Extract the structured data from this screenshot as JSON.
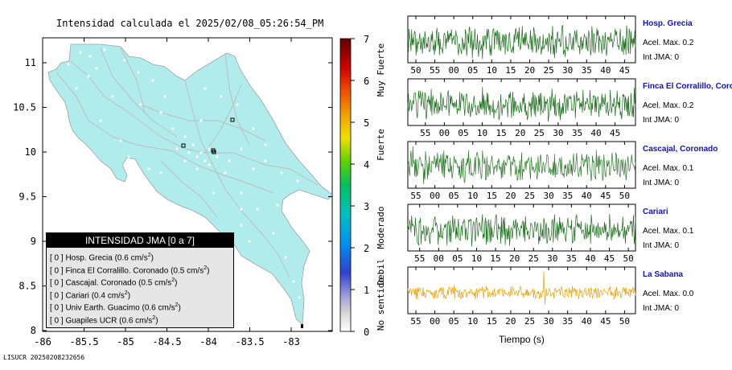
{
  "map": {
    "title": "Intensidad calculada el 2025/02/08_05:26:54_PM",
    "yticks": [
      "11",
      "10.5",
      "10",
      "9.5",
      "9",
      "8.5",
      "8"
    ],
    "xticks": [
      "-86",
      "-85.5",
      "-85",
      "-84.5",
      "-84",
      "-83.5",
      "-83"
    ],
    "land_color": "#b0ecec",
    "road_color": "#c0c0c0"
  },
  "colorbar": {
    "ticks": [
      "7",
      "6",
      "5",
      "4",
      "3",
      "2",
      "1",
      "0"
    ],
    "categories": [
      "Muy Fuerte",
      "Fuerte",
      "Moderado",
      "Debil",
      "No sentido"
    ]
  },
  "legend": {
    "header": "INTENSIDAD JMA [0 a 7]",
    "items": [
      {
        "level": "[ 0 ]",
        "name": "Hosp. Grecia",
        "value": "(0.6 cm/s",
        "sup": "2",
        "close": ")"
      },
      {
        "level": "[ 0 ]",
        "name": "Finca El Corralillo. Coronado",
        "value": "(0.5 cm/s",
        "sup": "2",
        "close": ")"
      },
      {
        "level": "[ 0 ]",
        "name": "Cascajal. Coronado",
        "value": "(0.5 cm/s",
        "sup": "2",
        "close": ")"
      },
      {
        "level": "[ 0 ]",
        "name": "Cariari",
        "value": "(0.4 cm/s",
        "sup": "2",
        "close": ")"
      },
      {
        "level": "[ 0 ]",
        "name": "Univ Earth. Guacimo",
        "value": "(0.6 cm/s",
        "sup": "2",
        "close": ")"
      },
      {
        "level": "[ 0 ]",
        "name": "Guapiles UCR",
        "value": "(0.6 cm/s",
        "sup": "2",
        "close": ")"
      }
    ]
  },
  "footer": "LISUCR 20250208232656",
  "stations": [
    {
      "name": "Hosp. Grecia",
      "acel": "Acel. Max. 0.2",
      "int": "Int JMA: 0",
      "color": "#1a6e1a",
      "ticks": [
        "50",
        "55",
        "00",
        "05",
        "10",
        "15",
        "20",
        "25",
        "30",
        "35",
        "40",
        "45"
      ],
      "tick_start": 0.0
    },
    {
      "name": "Finca El Corralillo, Coronado",
      "acel": "Acel. Max. 0.2",
      "int": "Int JMA: 0",
      "color": "#1a6e1a",
      "ticks": [
        "55",
        "00",
        "05",
        "10",
        "15",
        "20",
        "25",
        "30",
        "35",
        "40",
        "45",
        "50"
      ],
      "tick_start": 0.5
    },
    {
      "name": "Cascajal, Coronado",
      "acel": "Acel. Max. 0.1",
      "int": "Int JMA: 0",
      "color": "#2a7a2a",
      "ticks": [
        "55",
        "00",
        "05",
        "10",
        "15",
        "20",
        "25",
        "30",
        "35",
        "40",
        "45",
        "50"
      ],
      "tick_start": 0.0
    },
    {
      "name": "Cariari",
      "acel": "Acel. Max. 0.1",
      "int": "Int JMA: 0",
      "color": "#1a6e1a",
      "ticks": [
        "55",
        "00",
        "05",
        "10",
        "15",
        "20",
        "25",
        "30",
        "35",
        "40",
        "45",
        "50"
      ],
      "tick_start": 0.2
    },
    {
      "name": "La Sabana",
      "acel": "Acel. Max. 0.0",
      "int": "Int JMA: 0",
      "color": "#f0a000",
      "ticks": [
        "55",
        "00",
        "05",
        "10",
        "15",
        "20",
        "25",
        "30",
        "35",
        "40",
        "45",
        "50"
      ],
      "tick_start": 0.0
    }
  ],
  "time_label": "Tiempo (s)",
  "chart_data": [
    {
      "type": "map",
      "title": "Intensidad calculada el 2025/02/08_05:26:54_PM",
      "xlim": [
        -86.2,
        -82.5
      ],
      "ylim": [
        8,
        11.3
      ]
    },
    {
      "type": "line",
      "title": "Hosp. Grecia",
      "xlabel": "Tiempo (s)"
    },
    {
      "type": "line",
      "title": "Finca El Corralillo, Coronado",
      "xlabel": "Tiempo (s)"
    },
    {
      "type": "line",
      "title": "Cascajal, Coronado",
      "xlabel": "Tiempo (s)"
    },
    {
      "type": "line",
      "title": "Cariari",
      "xlabel": "Tiempo (s)"
    },
    {
      "type": "line",
      "title": "La Sabana",
      "xlabel": "Tiempo (s)"
    }
  ]
}
